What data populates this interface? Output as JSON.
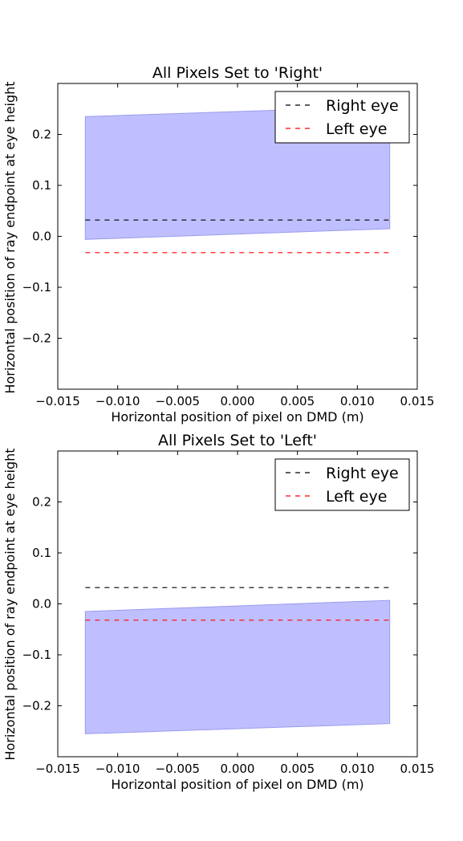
{
  "chart_data": [
    {
      "type": "area",
      "title": "All Pixels Set to 'Right'",
      "xlabel": "Horizontal position of pixel on DMD (m)",
      "ylabel": "Horizontal position of ray endpoint at eye height",
      "xlim": [
        -0.015,
        0.015
      ],
      "ylim": [
        -0.3,
        0.3
      ],
      "xticks": [
        -0.015,
        -0.01,
        -0.005,
        0.0,
        0.005,
        0.01,
        0.015
      ],
      "xtick_labels": [
        "−0.015",
        "−0.010",
        "−0.005",
        "0.000",
        "0.005",
        "0.010",
        "0.015"
      ],
      "yticks": [
        -0.2,
        -0.1,
        0.0,
        0.1,
        0.2
      ],
      "ytick_labels": [
        "−0.2",
        "−0.1",
        "0.0",
        "0.1",
        "0.2"
      ],
      "grid": false,
      "legend": "top-right",
      "band": {
        "x": [
          -0.0127,
          0.0127
        ],
        "lower": [
          -0.006,
          0.015
        ],
        "upper": [
          0.235,
          0.255
        ],
        "color": "#bfbfff",
        "edge": "#9a9aef"
      },
      "series": [
        {
          "name": "Right eye",
          "style": "dashed",
          "color": "#000000",
          "x": [
            -0.0127,
            0.0127
          ],
          "y": [
            0.032,
            0.032
          ]
        },
        {
          "name": "Left eye",
          "style": "dashed",
          "color": "#ff0000",
          "x": [
            -0.0127,
            0.0127
          ],
          "y": [
            -0.032,
            -0.032
          ]
        }
      ]
    },
    {
      "type": "area",
      "title": "All Pixels Set to 'Left'",
      "xlabel": "Horizontal position of pixel on DMD (m)",
      "ylabel": "Horizontal position of ray endpoint at eye height",
      "xlim": [
        -0.015,
        0.015
      ],
      "ylim": [
        -0.3,
        0.3
      ],
      "xticks": [
        -0.015,
        -0.01,
        -0.005,
        0.0,
        0.005,
        0.01,
        0.015
      ],
      "xtick_labels": [
        "−0.015",
        "−0.010",
        "−0.005",
        "0.000",
        "0.005",
        "0.010",
        "0.015"
      ],
      "yticks": [
        -0.2,
        -0.1,
        0.0,
        0.1,
        0.2
      ],
      "ytick_labels": [
        "−0.2",
        "−0.1",
        "0.0",
        "0.1",
        "0.2"
      ],
      "grid": false,
      "legend": "top-right",
      "band": {
        "x": [
          -0.0127,
          0.0127
        ],
        "lower": [
          -0.255,
          -0.235
        ],
        "upper": [
          -0.015,
          0.007
        ],
        "color": "#bfbfff",
        "edge": "#9a9aef"
      },
      "series": [
        {
          "name": "Right eye",
          "style": "dashed",
          "color": "#000000",
          "x": [
            -0.0127,
            0.0127
          ],
          "y": [
            0.032,
            0.032
          ]
        },
        {
          "name": "Left eye",
          "style": "dashed",
          "color": "#ff0000",
          "x": [
            -0.0127,
            0.0127
          ],
          "y": [
            -0.032,
            -0.032
          ]
        }
      ]
    }
  ]
}
